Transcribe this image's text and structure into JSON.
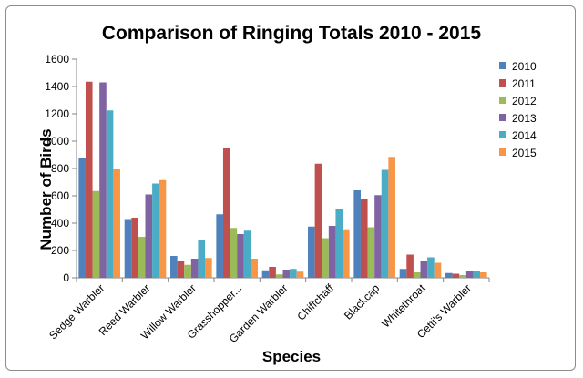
{
  "chart_data": {
    "type": "bar",
    "title": "Comparison of Ringing Totals 2010 - 2015",
    "xlabel": "Species",
    "ylabel": "Number of Birds",
    "ylim": [
      0,
      1600
    ],
    "yticks": [
      0,
      200,
      400,
      600,
      800,
      1000,
      1200,
      1400,
      1600
    ],
    "grid": false,
    "legend_position": "right",
    "categories": [
      "Sedge Warbler",
      "Reed Warbler",
      "Willow Warbler",
      "Grasshopper...",
      "Garden Warbler",
      "Chiffchaff",
      "Blackcap",
      "Whitethroat",
      "Cetti's Warbler"
    ],
    "series": [
      {
        "name": "2010",
        "color": "#4f81bd",
        "values": [
          880,
          430,
          160,
          465,
          55,
          375,
          640,
          65,
          35
        ]
      },
      {
        "name": "2011",
        "color": "#c0504d",
        "values": [
          1435,
          440,
          125,
          950,
          80,
          835,
          575,
          170,
          30
        ]
      },
      {
        "name": "2012",
        "color": "#9bbb59",
        "values": [
          635,
          300,
          95,
          365,
          25,
          290,
          370,
          40,
          20
        ]
      },
      {
        "name": "2013",
        "color": "#8064a2",
        "values": [
          1430,
          610,
          140,
          320,
          60,
          380,
          605,
          125,
          50
        ]
      },
      {
        "name": "2014",
        "color": "#4bacc6",
        "values": [
          1225,
          690,
          275,
          345,
          65,
          505,
          790,
          150,
          50
        ]
      },
      {
        "name": "2015",
        "color": "#f79646",
        "values": [
          800,
          715,
          145,
          140,
          45,
          355,
          885,
          110,
          40
        ]
      }
    ]
  }
}
